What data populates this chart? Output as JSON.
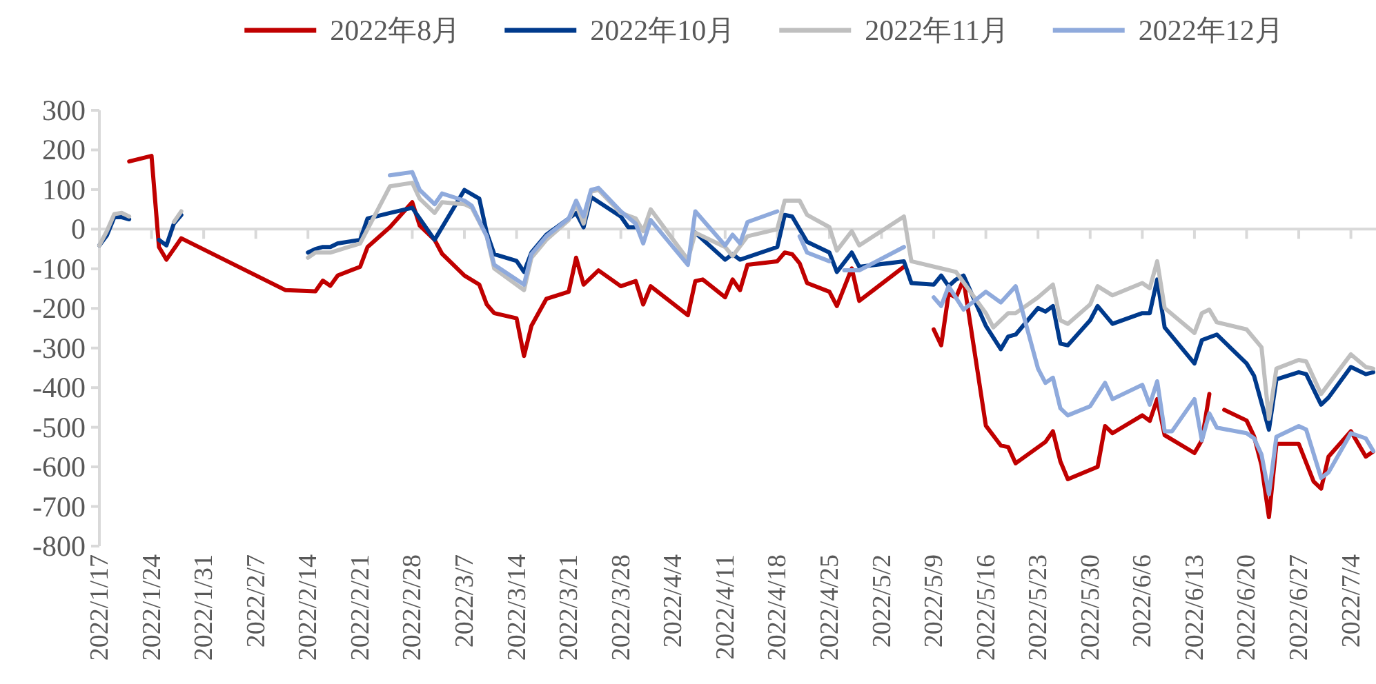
{
  "chart_data": {
    "type": "line",
    "legend": "top",
    "xlim": [
      "2022-01-17",
      "2022-07-07"
    ],
    "ylim": [
      -800,
      300
    ],
    "yticks": [
      -800,
      -700,
      -600,
      -500,
      -400,
      -300,
      -200,
      -100,
      0,
      100,
      200,
      300
    ],
    "xticks": [
      {
        "value": "2022-01-17",
        "label": "2022/1/17"
      },
      {
        "value": "2022-01-24",
        "label": "2022/1/24"
      },
      {
        "value": "2022-01-31",
        "label": "2022/1/31"
      },
      {
        "value": "2022-02-07",
        "label": "2022/2/7"
      },
      {
        "value": "2022-02-14",
        "label": "2022/2/14"
      },
      {
        "value": "2022-02-21",
        "label": "2022/2/21"
      },
      {
        "value": "2022-02-28",
        "label": "2022/2/28"
      },
      {
        "value": "2022-03-07",
        "label": "2022/3/7"
      },
      {
        "value": "2022-03-14",
        "label": "2022/3/14"
      },
      {
        "value": "2022-03-21",
        "label": "2022/3/21"
      },
      {
        "value": "2022-03-28",
        "label": "2022/3/28"
      },
      {
        "value": "2022-04-04",
        "label": "2022/4/4"
      },
      {
        "value": "2022-04-11",
        "label": "2022/4/11"
      },
      {
        "value": "2022-04-18",
        "label": "2022/4/18"
      },
      {
        "value": "2022-04-25",
        "label": "2022/4/25"
      },
      {
        "value": "2022-05-02",
        "label": "2022/5/2"
      },
      {
        "value": "2022-05-09",
        "label": "2022/5/9"
      },
      {
        "value": "2022-05-16",
        "label": "2022/5/16"
      },
      {
        "value": "2022-05-23",
        "label": "2022/5/23"
      },
      {
        "value": "2022-05-30",
        "label": "2022/5/30"
      },
      {
        "value": "2022-06-06",
        "label": "2022/6/6"
      },
      {
        "value": "2022-06-13",
        "label": "2022/6/13"
      },
      {
        "value": "2022-06-20",
        "label": "2022/6/20"
      },
      {
        "value": "2022-06-27",
        "label": "2022/6/27"
      },
      {
        "value": "2022-07-04",
        "label": "2022/7/4"
      }
    ],
    "series": [
      {
        "name": "2022年8月",
        "color": "#c00000",
        "x": [
          "2022-01-21",
          "2022-01-24",
          "2022-01-25",
          "2022-01-26",
          "2022-01-28",
          "2022-02-11",
          "2022-02-15",
          "2022-02-16",
          "2022-02-17",
          "2022-02-18",
          "2022-02-21",
          "2022-02-22",
          "2022-02-25",
          "2022-02-28",
          "2022-03-01",
          "2022-03-03",
          "2022-03-04",
          "2022-03-07",
          "2022-03-09",
          "2022-03-10",
          "2022-03-11",
          "2022-03-14",
          "2022-03-15",
          "2022-03-16",
          "2022-03-18",
          "2022-03-21",
          "2022-03-22",
          "2022-03-23",
          "2022-03-25",
          "2022-03-28",
          "2022-03-30",
          "2022-03-31",
          "2022-04-01",
          "2022-04-06",
          "2022-04-07",
          "2022-04-08",
          "2022-04-11",
          "2022-04-12",
          "2022-04-13",
          "2022-04-14",
          "2022-04-18",
          "2022-04-19",
          "2022-04-20",
          "2022-04-21",
          "2022-04-22",
          "2022-04-25",
          "2022-04-26",
          "2022-04-28",
          "2022-04-29",
          "2022-05-05",
          "2022-05-06",
          "2022-05-09",
          "2022-05-10",
          "2022-05-11",
          "2022-05-12",
          "2022-05-13",
          "2022-05-16",
          "2022-05-18",
          "2022-05-19",
          "2022-05-20",
          "2022-05-24",
          "2022-05-25",
          "2022-05-26",
          "2022-05-27",
          "2022-05-31",
          "2022-06-01",
          "2022-06-02",
          "2022-06-06",
          "2022-06-07",
          "2022-06-08",
          "2022-06-09",
          "2022-06-13",
          "2022-06-14",
          "2022-06-15",
          "2022-06-16",
          "2022-06-17",
          "2022-06-20",
          "2022-06-21",
          "2022-06-22",
          "2022-06-23",
          "2022-06-24",
          "2022-06-27",
          "2022-06-29",
          "2022-06-30",
          "2022-07-01",
          "2022-07-04",
          "2022-07-06",
          "2022-07-07"
        ],
        "values": [
          171,
          185,
          -45,
          -77,
          -23,
          -154,
          -157,
          -130,
          -143,
          -117,
          -95,
          -45,
          5,
          68,
          9,
          -27,
          -62,
          -117,
          -140,
          -190,
          -212,
          -225,
          -320,
          -244,
          -176,
          -158,
          -72,
          -140,
          -104,
          -144,
          -131,
          -190,
          -144,
          -217,
          -131,
          -127,
          -172,
          -127,
          -154,
          -90,
          -81,
          -59,
          -63,
          -86,
          -136,
          -158,
          -194,
          -99,
          -181,
          -95,
          null,
          -253,
          -293,
          -163,
          -172,
          -127,
          -496,
          -546,
          -550,
          -591,
          -537,
          -510,
          -586,
          -631,
          -600,
          -497,
          -515,
          -470,
          -484,
          -429,
          -520,
          -565,
          -533,
          -416,
          null,
          -456,
          -483,
          -523,
          -596,
          -727,
          -542,
          -542,
          -637,
          -655,
          -574,
          -510,
          -574,
          -561
        ]
      },
      {
        "name": "2022年10月",
        "color": "#003a8c",
        "x": [
          "2022-01-17",
          "2022-01-18",
          "2022-01-19",
          "2022-01-20",
          "2022-01-21",
          "2022-01-24",
          "2022-01-25",
          "2022-01-26",
          "2022-01-27",
          "2022-01-28",
          "2022-02-07",
          "2022-02-14",
          "2022-02-15",
          "2022-02-16",
          "2022-02-17",
          "2022-02-18",
          "2022-02-21",
          "2022-02-22",
          "2022-02-25",
          "2022-02-28",
          "2022-03-03",
          "2022-03-07",
          "2022-03-09",
          "2022-03-10",
          "2022-03-11",
          "2022-03-14",
          "2022-03-15",
          "2022-03-16",
          "2022-03-18",
          "2022-03-21",
          "2022-03-22",
          "2022-03-23",
          "2022-03-24",
          "2022-03-28",
          "2022-03-29",
          "2022-03-30",
          "2022-04-01",
          "2022-04-07",
          "2022-04-11",
          "2022-04-12",
          "2022-04-13",
          "2022-04-18",
          "2022-04-19",
          "2022-04-20",
          "2022-04-22",
          "2022-04-25",
          "2022-04-26",
          "2022-04-28",
          "2022-04-29",
          "2022-05-05",
          "2022-05-06",
          "2022-05-09",
          "2022-05-10",
          "2022-05-11",
          "2022-05-12",
          "2022-05-13",
          "2022-05-16",
          "2022-05-18",
          "2022-05-19",
          "2022-05-20",
          "2022-05-23",
          "2022-05-24",
          "2022-05-25",
          "2022-05-26",
          "2022-05-27",
          "2022-05-30",
          "2022-05-31",
          "2022-06-02",
          "2022-06-06",
          "2022-06-07",
          "2022-06-08",
          "2022-06-09",
          "2022-06-13",
          "2022-06-14",
          "2022-06-16",
          "2022-06-20",
          "2022-06-21",
          "2022-06-23",
          "2022-06-24",
          "2022-06-27",
          "2022-06-28",
          "2022-06-30",
          "2022-07-01",
          "2022-07-04",
          "2022-07-06",
          "2022-07-07"
        ],
        "values": [
          -41,
          -16,
          30,
          30,
          25,
          null,
          -27,
          -41,
          14,
          36,
          null,
          -59,
          -50,
          -45,
          -45,
          -36,
          -27,
          27,
          41,
          54,
          -27,
          99,
          77,
          -9,
          -63,
          -80,
          -108,
          -59,
          -14,
          27,
          41,
          5,
          81,
          32,
          5,
          5,
          null,
          -9,
          -77,
          -63,
          -77,
          -45,
          36,
          32,
          -32,
          -59,
          -108,
          -59,
          -95,
          -81,
          -136,
          -140,
          -117,
          -144,
          -127,
          -117,
          -244,
          -303,
          -271,
          -266,
          -199,
          -208,
          -194,
          -289,
          -293,
          -230,
          -194,
          -239,
          -212,
          -212,
          -127,
          -248,
          -339,
          -280,
          -266,
          -339,
          -370,
          -506,
          -379,
          -361,
          -366,
          -443,
          -425,
          -348,
          -366,
          -361
        ]
      },
      {
        "name": "2022年11月",
        "color": "#bfbfbf",
        "x": [
          "2022-01-17",
          "2022-01-18",
          "2022-01-19",
          "2022-01-20",
          "2022-01-21",
          "2022-01-24",
          "2022-01-27",
          "2022-01-28",
          "2022-02-07",
          "2022-02-14",
          "2022-02-15",
          "2022-02-17",
          "2022-02-21",
          "2022-02-25",
          "2022-02-28",
          "2022-03-01",
          "2022-03-03",
          "2022-03-04",
          "2022-03-07",
          "2022-03-08",
          "2022-03-10",
          "2022-03-11",
          "2022-03-15",
          "2022-03-16",
          "2022-03-18",
          "2022-03-21",
          "2022-03-22",
          "2022-03-23",
          "2022-03-24",
          "2022-03-25",
          "2022-03-28",
          "2022-03-30",
          "2022-03-31",
          "2022-04-01",
          "2022-04-06",
          "2022-04-07",
          "2022-04-11",
          "2022-04-12",
          "2022-04-14",
          "2022-04-18",
          "2022-04-19",
          "2022-04-21",
          "2022-04-22",
          "2022-04-25",
          "2022-04-26",
          "2022-04-28",
          "2022-04-29",
          "2022-05-05",
          "2022-05-06",
          "2022-05-10",
          "2022-05-12",
          "2022-05-16",
          "2022-05-17",
          "2022-05-19",
          "2022-05-20",
          "2022-05-23",
          "2022-05-25",
          "2022-05-26",
          "2022-05-27",
          "2022-05-30",
          "2022-05-31",
          "2022-06-02",
          "2022-06-06",
          "2022-06-07",
          "2022-06-08",
          "2022-06-09",
          "2022-06-13",
          "2022-06-14",
          "2022-06-15",
          "2022-06-16",
          "2022-06-20",
          "2022-06-22",
          "2022-06-23",
          "2022-06-24",
          "2022-06-27",
          "2022-06-28",
          "2022-06-30",
          "2022-07-04",
          "2022-07-06",
          "2022-07-07"
        ],
        "values": [
          -41,
          -5,
          38,
          41,
          32,
          null,
          18,
          45,
          null,
          -72,
          -59,
          -59,
          -36,
          108,
          117,
          77,
          41,
          68,
          63,
          54,
          -18,
          -99,
          -154,
          -72,
          -27,
          23,
          63,
          14,
          95,
          99,
          41,
          27,
          -5,
          50,
          -77,
          -9,
          -45,
          -68,
          -18,
          0,
          72,
          72,
          36,
          5,
          -54,
          -5,
          -41,
          32,
          -81,
          -99,
          -108,
          -212,
          -248,
          -212,
          -212,
          -172,
          -140,
          -230,
          -239,
          -190,
          -144,
          -167,
          -136,
          -149,
          -81,
          -199,
          -262,
          -212,
          -203,
          -235,
          -253,
          -298,
          -479,
          -352,
          -330,
          -334,
          -416,
          -316,
          -348,
          -352
        ]
      },
      {
        "name": "2022年12月",
        "color": "#8faadc",
        "x": [
          "2022-02-25",
          "2022-02-28",
          "2022-03-01",
          "2022-03-03",
          "2022-03-04",
          "2022-03-07",
          "2022-03-08",
          "2022-03-10",
          "2022-03-11",
          "2022-03-15",
          "2022-03-16",
          "2022-03-18",
          "2022-03-21",
          "2022-03-22",
          "2022-03-23",
          "2022-03-24",
          "2022-03-25",
          "2022-03-28",
          "2022-03-30",
          "2022-03-31",
          "2022-04-01",
          "2022-04-06",
          "2022-04-07",
          "2022-04-11",
          "2022-04-12",
          "2022-04-13",
          "2022-04-14",
          "2022-04-18",
          "2022-04-19",
          "2022-04-21",
          "2022-04-22",
          "2022-04-25",
          "2022-04-26",
          "2022-04-27",
          "2022-04-29",
          "2022-05-05",
          "2022-05-06",
          "2022-05-09",
          "2022-05-10",
          "2022-05-11",
          "2022-05-13",
          "2022-05-16",
          "2022-05-18",
          "2022-05-20",
          "2022-05-23",
          "2022-05-24",
          "2022-05-25",
          "2022-05-26",
          "2022-05-27",
          "2022-05-30",
          "2022-06-01",
          "2022-06-02",
          "2022-06-06",
          "2022-06-07",
          "2022-06-08",
          "2022-06-09",
          "2022-06-10",
          "2022-06-13",
          "2022-06-14",
          "2022-06-15",
          "2022-06-16",
          "2022-06-20",
          "2022-06-21",
          "2022-06-22",
          "2022-06-23",
          "2022-06-24",
          "2022-06-27",
          "2022-06-28",
          "2022-06-30",
          "2022-07-01",
          "2022-07-04",
          "2022-07-06",
          "2022-07-07"
        ],
        "values": [
          136,
          144,
          99,
          63,
          90,
          72,
          59,
          -18,
          -90,
          -140,
          -63,
          -18,
          27,
          72,
          32,
          99,
          104,
          45,
          14,
          -36,
          23,
          -90,
          45,
          -41,
          -14,
          -36,
          18,
          45,
          null,
          -18,
          -59,
          -81,
          null,
          -104,
          -104,
          -45,
          null,
          -172,
          -194,
          -144,
          -203,
          -158,
          -185,
          -144,
          -352,
          -388,
          -375,
          -452,
          -470,
          -447,
          -388,
          -429,
          -393,
          -443,
          -384,
          -510,
          -510,
          -429,
          -533,
          -465,
          -501,
          -515,
          -528,
          -569,
          -669,
          -524,
          -497,
          -506,
          -628,
          -614,
          -515,
          -528,
          -560
        ]
      }
    ]
  }
}
